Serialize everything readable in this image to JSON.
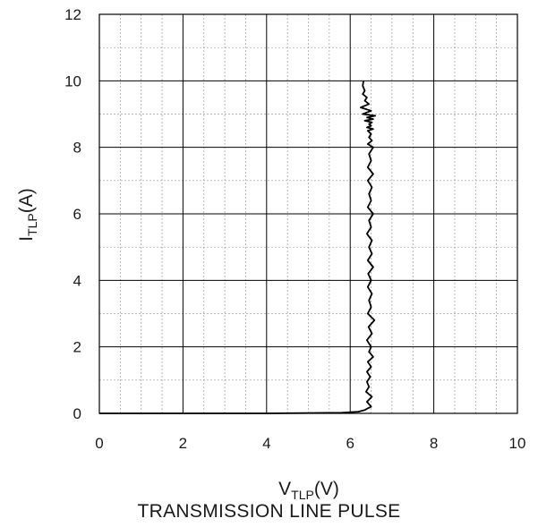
{
  "chart_data": {
    "type": "line",
    "title": "TRANSMISSION LINE PULSE",
    "xlabel": {
      "main": "V",
      "sub": "TLP",
      "unit": "(V)"
    },
    "ylabel": {
      "main": "I",
      "sub": "TLP",
      "unit": "(A)"
    },
    "xlim": [
      0,
      10
    ],
    "ylim": [
      0,
      12
    ],
    "x_ticks": [
      "0",
      "2",
      "4",
      "6",
      "8",
      "10"
    ],
    "y_ticks": [
      "0",
      "2",
      "4",
      "6",
      "8",
      "10",
      "12"
    ],
    "grid": {
      "major": true,
      "minor": true
    },
    "series": [
      {
        "x": [
          0,
          2,
          4,
          5.8,
          6.2,
          6.35,
          6.42,
          6.5,
          6.4,
          6.52,
          6.38,
          6.45,
          6.4,
          6.48,
          6.4,
          6.5,
          6.42,
          6.55,
          6.45,
          6.5,
          6.4,
          6.52,
          6.44,
          6.58,
          6.42,
          6.5,
          6.45,
          6.52,
          6.42,
          6.5,
          6.43,
          6.55,
          6.42,
          6.52,
          6.45,
          6.52,
          6.4,
          6.5,
          6.45,
          6.55,
          6.42,
          6.5,
          6.45,
          6.52,
          6.42,
          6.55,
          6.42,
          6.5,
          6.45,
          6.55,
          6.42,
          6.52,
          6.45,
          6.5,
          6.42,
          6.55,
          6.4,
          6.5,
          6.45,
          6.52,
          6.35,
          6.55,
          6.4,
          6.6,
          6.3,
          6.5,
          6.25,
          6.45,
          6.35,
          6.4,
          6.3,
          6.35,
          6.3,
          6.32
        ],
        "y": [
          0,
          0,
          0,
          0.02,
          0.05,
          0.1,
          0.15,
          0.2,
          0.35,
          0.5,
          0.65,
          0.8,
          0.95,
          1.1,
          1.25,
          1.4,
          1.55,
          1.7,
          1.85,
          2.0,
          2.2,
          2.4,
          2.6,
          2.8,
          3.0,
          3.2,
          3.4,
          3.6,
          3.8,
          4.0,
          4.2,
          4.4,
          4.6,
          4.8,
          5.0,
          5.2,
          5.4,
          5.6,
          5.8,
          6.0,
          6.2,
          6.4,
          6.6,
          6.8,
          7.0,
          7.2,
          7.4,
          7.6,
          7.8,
          8.0,
          8.1,
          8.2,
          8.3,
          8.4,
          8.5,
          8.55,
          8.6,
          8.65,
          8.7,
          8.75,
          8.8,
          8.85,
          8.9,
          8.95,
          9.0,
          9.1,
          9.2,
          9.3,
          9.4,
          9.5,
          9.6,
          9.7,
          9.85,
          10.0
        ]
      }
    ]
  }
}
